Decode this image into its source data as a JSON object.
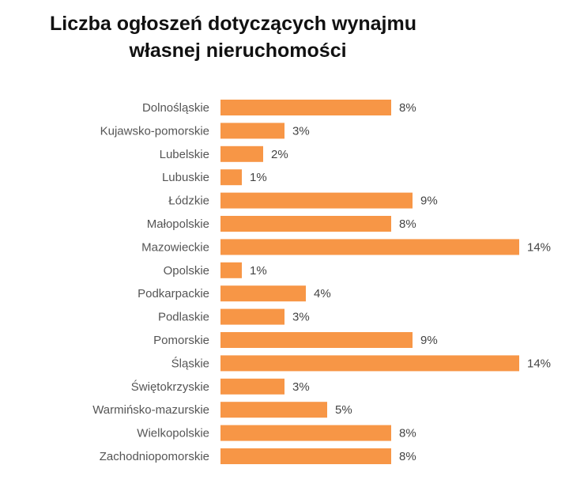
{
  "chart_data": {
    "type": "bar",
    "orientation": "horizontal",
    "title_lines": [
      "Liczba ogłoszeń dotyczących wynajmu",
      "własnej nieruchomości"
    ],
    "categories": [
      "Dolnośląskie",
      "Kujawsko-pomorskie",
      "Lubelskie",
      "Lubuskie",
      "Łódzkie",
      "Małopolskie",
      "Mazowieckie",
      "Opolskie",
      "Podkarpackie",
      "Podlaskie",
      "Pomorskie",
      "Śląskie",
      "Świętokrzyskie",
      "Warmińsko-mazurskie",
      "Wielkopolskie",
      "Zachodniopomorskie"
    ],
    "values": [
      8,
      3,
      2,
      1,
      9,
      8,
      14,
      1,
      4,
      3,
      9,
      14,
      3,
      5,
      8,
      8
    ],
    "value_labels": [
      "8%",
      "3%",
      "2%",
      "1%",
      "9%",
      "8%",
      "14%",
      "1%",
      "4%",
      "3%",
      "9%",
      "14%",
      "3%",
      "5%",
      "8%",
      "8%"
    ],
    "unit": "%",
    "bar_color": "#F79646",
    "grid": false,
    "legend": "none"
  }
}
